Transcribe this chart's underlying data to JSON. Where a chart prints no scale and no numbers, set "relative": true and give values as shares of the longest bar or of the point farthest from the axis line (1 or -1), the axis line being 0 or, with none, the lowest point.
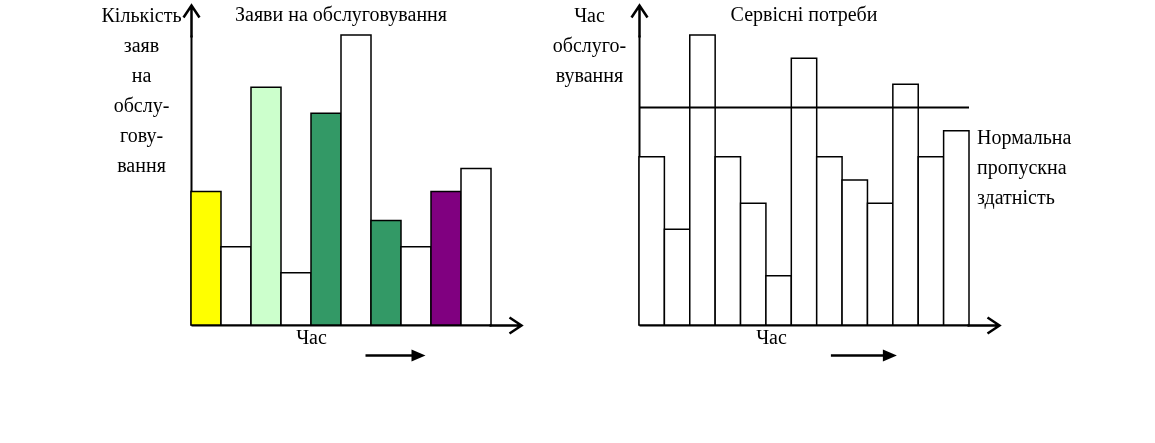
{
  "chart_data": [
    {
      "type": "bar",
      "title": "Заяви на обслуговування",
      "xlabel": "Час",
      "ylabel": "Кількість заяв на обслу-гову-вання",
      "relative": true,
      "categories": [
        null,
        null,
        null,
        null,
        null,
        null,
        null,
        null,
        null,
        null
      ],
      "values": [
        0.46,
        0.27,
        0.82,
        0.18,
        0.73,
        1,
        0.36,
        0.27,
        0.46,
        0.54
      ],
      "colors": [
        "#ffff00",
        "#ffffff",
        "#ccffcc",
        "#ffffff",
        "#339966",
        "#ffffff",
        "#339966",
        "#ffffff",
        "#800080",
        "#ffffff"
      ]
    },
    {
      "type": "bar",
      "title": "Сервісні потреби",
      "xlabel": "Час",
      "ylabel": "Час обслуго-вування",
      "relative": true,
      "categories": [
        null,
        null,
        null,
        null,
        null,
        null,
        null,
        null,
        null,
        null,
        null,
        null,
        null
      ],
      "values": [
        0.58,
        0.33,
        1,
        0.58,
        0.42,
        0.17,
        0.92,
        0.58,
        0.5,
        0.42,
        0.83,
        0.58,
        0.67
      ],
      "color": "#ffffff",
      "ref_lines": [
        {
          "axis": "y",
          "value": 0.75,
          "label": "Нормальна пропускна здатність"
        }
      ]
    }
  ]
}
